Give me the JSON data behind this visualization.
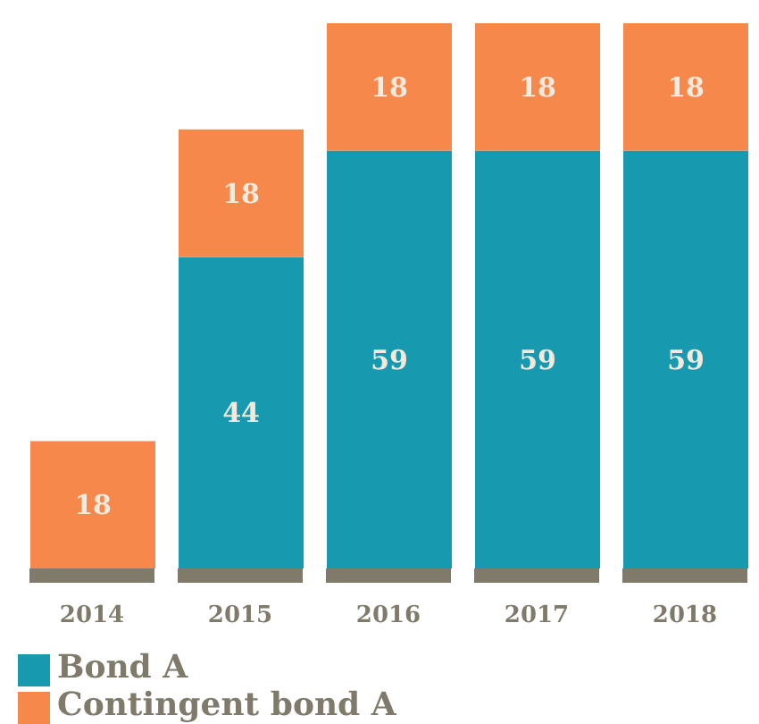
{
  "chart_data": {
    "type": "bar",
    "stacked": true,
    "data_labels": true,
    "legend": "bottom",
    "grid": false,
    "categories": [
      "2014",
      "2015",
      "2016",
      "2017",
      "2018"
    ],
    "series": [
      {
        "name": "Bond A",
        "color": "#1799b0",
        "values": [
          null,
          44,
          59,
          59,
          59
        ]
      },
      {
        "name": "Contingent bond A",
        "color": "#f5884a",
        "values": [
          18,
          18,
          18,
          18,
          18
        ]
      }
    ]
  }
}
